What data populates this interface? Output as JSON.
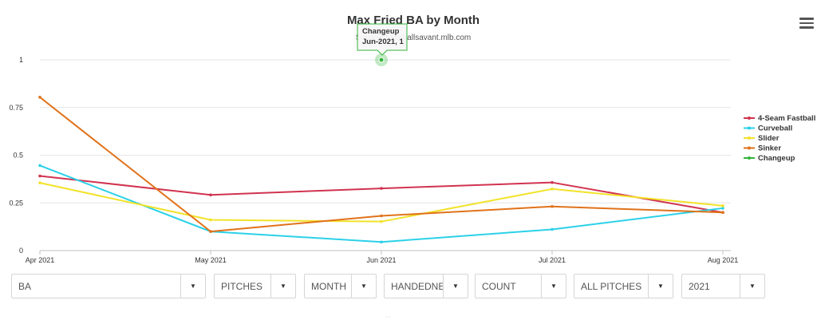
{
  "chart_data": {
    "type": "line",
    "title": "Max Fried BA by Month",
    "subtitle": "Source: baseballsavant.mlb.com",
    "categories": [
      "Apr 2021",
      "May 2021",
      "Jun 2021",
      "Jul 2021",
      "Aug 2021"
    ],
    "y_ticks": [
      "0",
      "0.25",
      "0.5",
      "0.75",
      "1"
    ],
    "ylim": [
      0,
      1
    ],
    "grid": true,
    "legend_position": "right",
    "series": [
      {
        "name": "4-Seam Fastball",
        "color": "#d1334f",
        "values": [
          0.391,
          0.292,
          0.326,
          0.357,
          0.2
        ]
      },
      {
        "name": "Curveball",
        "color": "#2bd1e8",
        "values": [
          0.446,
          0.1,
          0.045,
          0.111,
          0.222
        ]
      },
      {
        "name": "Slider",
        "color": "#f2e22a",
        "values": [
          0.355,
          0.161,
          0.152,
          0.323,
          0.235
        ]
      },
      {
        "name": "Sinker",
        "color": "#e0721a",
        "values": [
          0.804,
          0.1,
          0.182,
          0.231,
          0.2
        ]
      },
      {
        "name": "Changeup",
        "color": "#33b53b",
        "values": [
          null,
          null,
          1,
          null,
          null
        ]
      }
    ],
    "tooltip": {
      "series": "Changeup",
      "label": "Jun-2021, 1",
      "category_index": 2,
      "value": 1
    }
  },
  "controls": [
    {
      "label": "BA"
    },
    {
      "label": "PITCHES"
    },
    {
      "label": "MONTH"
    },
    {
      "label": "HANDEDNESS"
    },
    {
      "label": "COUNT"
    },
    {
      "label": "ALL PITCHES"
    },
    {
      "label": "2021"
    }
  ],
  "icons": {
    "menu": "hamburger-menu-icon",
    "dropdown": "caret-down-icon"
  }
}
